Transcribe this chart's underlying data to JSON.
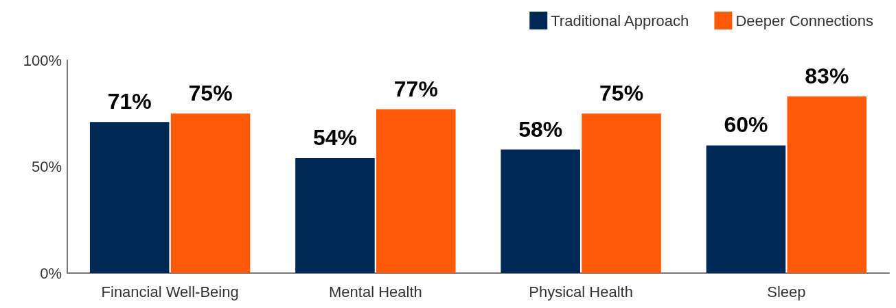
{
  "chart_data": {
    "type": "bar",
    "categories": [
      "Financial Well-Being",
      "Mental Health",
      "Physical Health",
      "Sleep"
    ],
    "series": [
      {
        "name": "Traditional Approach",
        "color": "#002855",
        "values": [
          71,
          54,
          58,
          60
        ],
        "value_labels": [
          "71%",
          "54%",
          "58%",
          "60%"
        ]
      },
      {
        "name": "Deeper Connections",
        "color": "#ff5a0a",
        "values": [
          75,
          77,
          75,
          83
        ],
        "value_labels": [
          "75%",
          "77%",
          "75%",
          "83%"
        ]
      }
    ],
    "ylim": [
      0,
      100
    ],
    "yticks": [
      {
        "value": 0,
        "label": "0%"
      },
      {
        "value": 50,
        "label": "50%"
      },
      {
        "value": 100,
        "label": "100%"
      }
    ],
    "grid": false,
    "legend": "top right"
  }
}
